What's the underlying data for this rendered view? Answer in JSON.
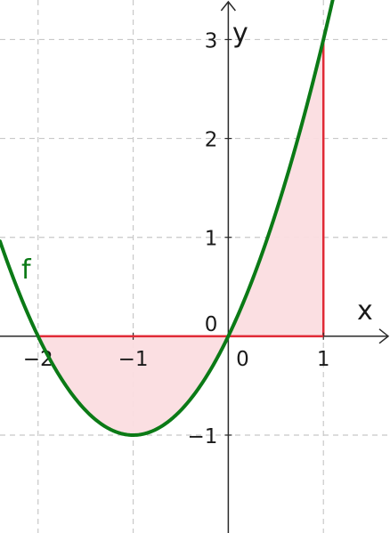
{
  "colors": {
    "curve": "#0b7a16",
    "area_fill": "#fbdde0",
    "area_stroke": "#e02a36",
    "grid": "#c8c8c8",
    "axis": "#2a2a2a"
  },
  "chart_data": {
    "type": "line",
    "title": "",
    "grid": true,
    "xlabel": "x",
    "ylabel": "y",
    "xlim": [
      -2.4,
      1.7
    ],
    "ylim": [
      -1.99,
      3.4
    ],
    "x_ticks": [
      -2,
      -1,
      0,
      1
    ],
    "y_ticks": [
      -1,
      0,
      1,
      2,
      3
    ],
    "x_tick_labels": [
      "−2",
      "−1",
      "0",
      "1"
    ],
    "y_tick_labels": [
      "−1",
      "0",
      "1",
      "2",
      "3"
    ],
    "function": {
      "name": "f",
      "expression": "x^2 + 2x",
      "domain": [
        -2.4,
        1.7
      ],
      "sample_points": [
        {
          "x": -2,
          "y": 0
        },
        {
          "x": -1,
          "y": -1
        },
        {
          "x": 0,
          "y": 0
        },
        {
          "x": 1,
          "y": 3
        }
      ]
    },
    "shaded_region": {
      "between": "f and x-axis",
      "x_from": -2,
      "x_to": 1,
      "right_edge_height": 3
    }
  }
}
